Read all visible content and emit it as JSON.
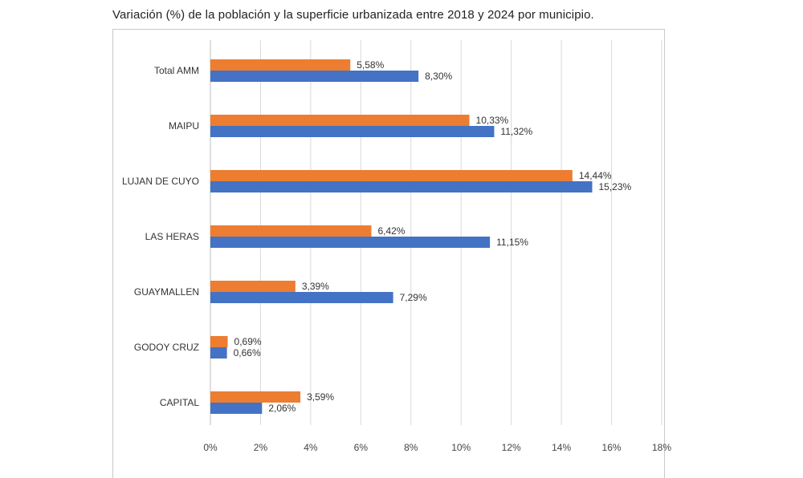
{
  "chart_data": {
    "type": "bar",
    "orientation": "horizontal",
    "title": "Variación (%) de la población y la superficie urbanizada entre 2018 y 2024 por municipio.",
    "categories": [
      "Total AMM",
      "MAIPU",
      "LUJAN DE CUYO",
      "LAS HERAS",
      "GUAYMALLEN",
      "GODOY CRUZ",
      "CAPITAL"
    ],
    "series": [
      {
        "color": "#ED7D31",
        "values": [
          5.58,
          10.33,
          14.44,
          6.42,
          3.39,
          0.69,
          3.59
        ],
        "labels": [
          "5,58%",
          "10,33%",
          "14,44%",
          "6,42%",
          "3,39%",
          "0,69%",
          "3,59%"
        ]
      },
      {
        "color": "#4472C4",
        "values": [
          8.3,
          11.32,
          15.23,
          11.15,
          7.29,
          0.66,
          2.06
        ],
        "labels": [
          "8,30%",
          "11,32%",
          "15,23%",
          "11,15%",
          "7,29%",
          "0,66%",
          "2,06%"
        ]
      }
    ],
    "xlim": [
      0,
      18
    ],
    "xticks": [
      0,
      2,
      4,
      6,
      8,
      10,
      12,
      14,
      16,
      18
    ],
    "xtick_labels": [
      "0%",
      "2%",
      "4%",
      "6%",
      "8%",
      "10%",
      "12%",
      "14%",
      "16%",
      "18%"
    ],
    "grid": "vertical",
    "legend": "none"
  }
}
